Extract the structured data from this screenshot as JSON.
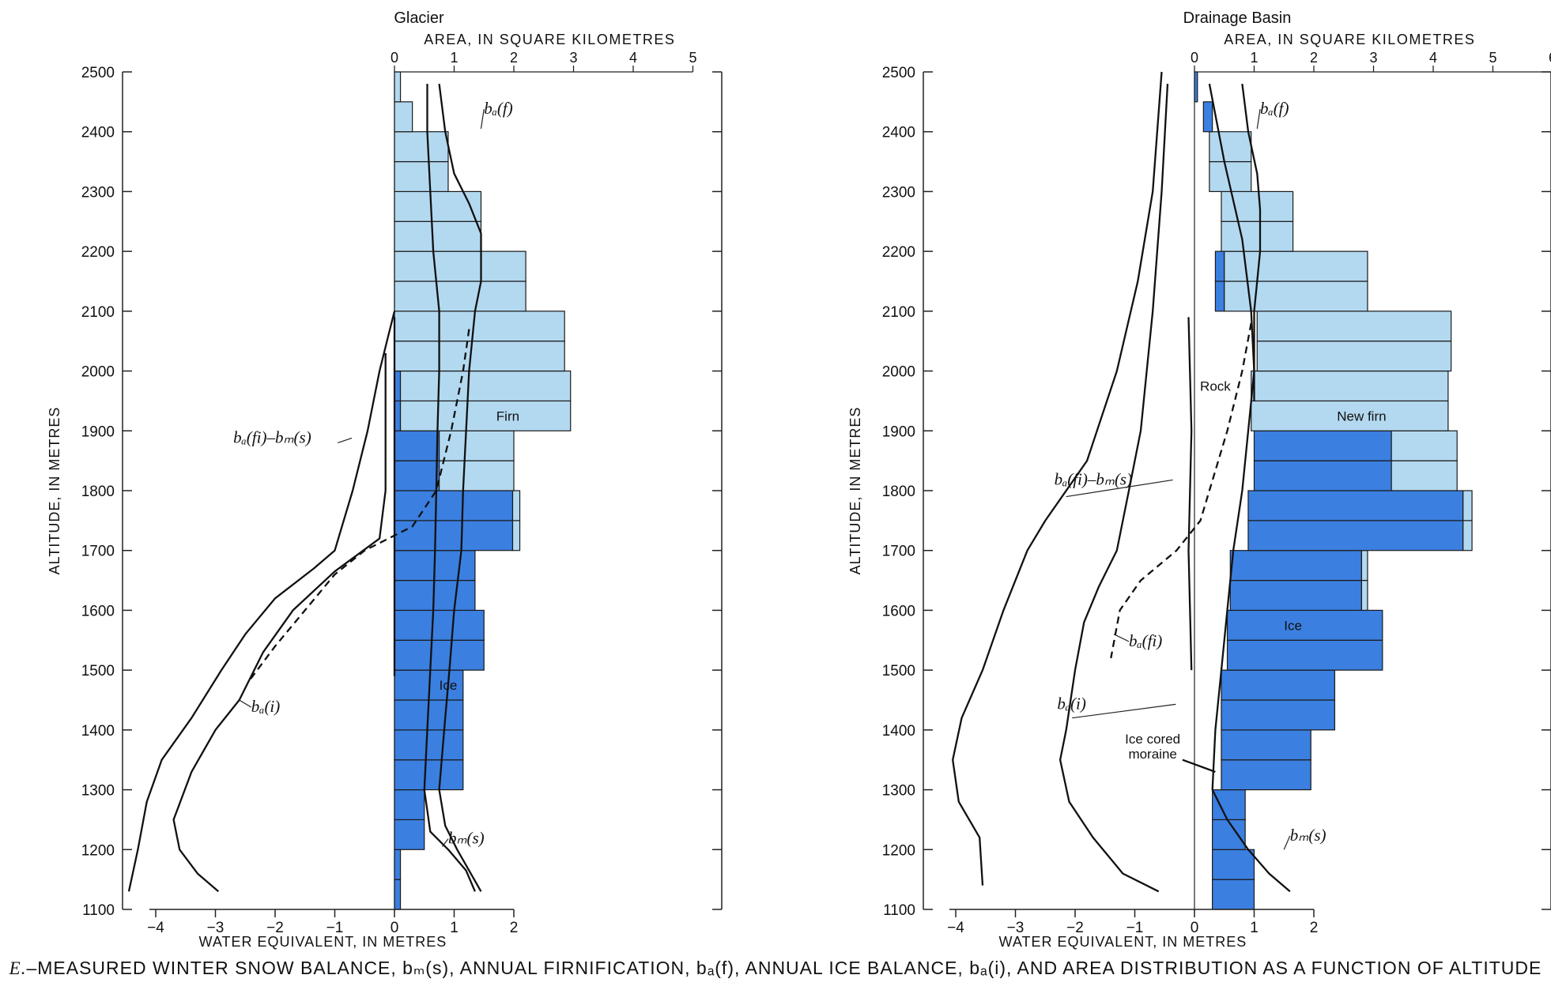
{
  "caption": {
    "letter": "E.",
    "text": "–MEASURED WINTER SNOW BALANCE, bₘ(s), ANNUAL FIRNIFICATION, bₐ(f), ANNUAL ICE BALANCE, bₐ(i), AND AREA DISTRIBUTION AS A FUNCTION OF ALTITUDE"
  },
  "colors": {
    "firn": "#b3d9f0",
    "ice": "#3b7fe0",
    "line": "#111111"
  },
  "chart_data": [
    {
      "type": "bar",
      "title": "Glacier",
      "top_axis_label": "AREA, IN SQUARE KILOMETRES",
      "area_ticks": [
        "0",
        "1",
        "2",
        "3",
        "4",
        "5"
      ],
      "area_lim": [
        0,
        5
      ],
      "ylabel": "ALTITUDE, IN METRES",
      "ylim": [
        1100,
        2500
      ],
      "y_ticks": [
        "1100",
        "1200",
        "1300",
        "1400",
        "1500",
        "1600",
        "1700",
        "1800",
        "1900",
        "2000",
        "2100",
        "2200",
        "2300",
        "2400",
        "2500"
      ],
      "xlabel": "WATER EQUIVALENT, IN METRES",
      "x_ticks": [
        "-4",
        "-3",
        "-2",
        "-1",
        "0",
        "1",
        "2"
      ],
      "xlim": [
        -4.45,
        2
      ],
      "region_labels": [
        {
          "text": "Firn",
          "area": 1.9,
          "alt": 1925,
          "kind": "firn"
        },
        {
          "text": "Ice",
          "area": 0.9,
          "alt": 1475,
          "kind": "ice"
        }
      ],
      "area_bands": {
        "altitudes": [
          1100,
          1150,
          1200,
          1250,
          1300,
          1350,
          1400,
          1450,
          1500,
          1550,
          1600,
          1650,
          1700,
          1750,
          1800,
          1850,
          1900,
          1950,
          2000,
          2050,
          2100,
          2150,
          2200,
          2250,
          2300,
          2350,
          2400,
          2450
        ],
        "ice": [
          0.1,
          0.1,
          0.5,
          0.5,
          1.15,
          1.15,
          1.15,
          1.15,
          1.5,
          1.5,
          1.35,
          1.35,
          1.98,
          1.98,
          0.75,
          0.75,
          0.1,
          0.1,
          0,
          0,
          0,
          0,
          0,
          0,
          0,
          0,
          0,
          0
        ],
        "firn": [
          0,
          0,
          0,
          0,
          0,
          0,
          0,
          0,
          0,
          0,
          0,
          0,
          0.12,
          0.12,
          1.25,
          1.25,
          2.85,
          2.85,
          2.85,
          2.85,
          2.2,
          2.2,
          1.45,
          1.45,
          0.9,
          0.9,
          0.3,
          0.1
        ]
      },
      "series": [
        {
          "name": "bₐ(f)",
          "label_at": {
            "x": 1.5,
            "alt": 2430
          },
          "label_anchor": {
            "x": 1.45,
            "alt": 2405
          },
          "points": [
            [
              0.75,
              2480
            ],
            [
              0.85,
              2400
            ],
            [
              1.0,
              2330
            ],
            [
              1.25,
              2280
            ],
            [
              1.45,
              2230
            ],
            [
              1.45,
              2150
            ],
            [
              1.35,
              2100
            ],
            [
              1.25,
              2000
            ],
            [
              1.2,
              1900
            ],
            [
              1.15,
              1800
            ],
            [
              1.12,
              1700
            ],
            [
              1.0,
              1600
            ],
            [
              0.92,
              1500
            ],
            [
              0.85,
              1420
            ],
            [
              0.75,
              1300
            ],
            [
              0.85,
              1240
            ],
            [
              1.05,
              1200
            ],
            [
              1.25,
              1165
            ],
            [
              1.45,
              1130
            ]
          ]
        },
        {
          "name": "bₘ(s)",
          "label_at": {
            "x": 0.9,
            "alt": 1210
          },
          "label_anchor": {
            "x": 0.8,
            "alt": 1205
          },
          "points": [
            [
              0.55,
              2480
            ],
            [
              0.55,
              2400
            ],
            [
              0.6,
              2300
            ],
            [
              0.65,
              2200
            ],
            [
              0.75,
              2100
            ],
            [
              0.75,
              2000
            ],
            [
              0.72,
              1900
            ],
            [
              0.7,
              1800
            ],
            [
              0.68,
              1700
            ],
            [
              0.65,
              1600
            ],
            [
              0.6,
              1500
            ],
            [
              0.55,
              1400
            ],
            [
              0.5,
              1300
            ],
            [
              0.6,
              1230
            ],
            [
              0.9,
              1200
            ],
            [
              1.2,
              1165
            ],
            [
              1.35,
              1130
            ]
          ]
        },
        {
          "name": "bₐ(i)",
          "label_at": {
            "x": -2.4,
            "alt": 1430
          },
          "label_anchor": {
            "x": -2.6,
            "alt": 1450
          },
          "points": [
            [
              -0.15,
              2030
            ],
            [
              -0.15,
              1900
            ],
            [
              -0.15,
              1800
            ],
            [
              -0.25,
              1720
            ],
            [
              -1.0,
              1665
            ],
            [
              -1.7,
              1600
            ],
            [
              -2.2,
              1530
            ],
            [
              -2.6,
              1450
            ],
            [
              -3.0,
              1400
            ],
            [
              -3.4,
              1330
            ],
            [
              -3.7,
              1250
            ],
            [
              -3.6,
              1200
            ],
            [
              -3.3,
              1160
            ],
            [
              -2.95,
              1130
            ]
          ]
        },
        {
          "name": "bₐ(fi)–bₘ(s)",
          "label_at": {
            "x": -2.7,
            "alt": 1880
          },
          "label_anchor": {
            "x": -0.95,
            "alt": 1880
          },
          "points": [
            [
              0.0,
              2100
            ],
            [
              -0.1,
              2060
            ],
            [
              -0.25,
              2000
            ],
            [
              -0.45,
              1900
            ],
            [
              -0.7,
              1800
            ],
            [
              -1.0,
              1700
            ],
            [
              -1.35,
              1670
            ],
            [
              -2.0,
              1620
            ],
            [
              -2.5,
              1560
            ],
            [
              -2.9,
              1500
            ],
            [
              -3.4,
              1420
            ],
            [
              -3.9,
              1350
            ],
            [
              -4.15,
              1280
            ],
            [
              -4.3,
              1200
            ],
            [
              -4.45,
              1130
            ]
          ]
        },
        {
          "name": "bₐ(fi)",
          "dashed": true,
          "points": [
            [
              1.25,
              2070
            ],
            [
              1.15,
              2000
            ],
            [
              0.95,
              1900
            ],
            [
              0.7,
              1800
            ],
            [
              0.3,
              1740
            ],
            [
              -0.1,
              1720
            ],
            [
              -0.5,
              1700
            ],
            [
              -1.0,
              1660
            ],
            [
              -1.5,
              1600
            ],
            [
              -2.0,
              1540
            ],
            [
              -2.45,
              1480
            ]
          ]
        },
        {
          "name": "bₐ(fi) (0 line)",
          "points": [
            [
              0.0,
              2090
            ],
            [
              0.0,
              1490
            ]
          ]
        }
      ]
    },
    {
      "type": "bar",
      "title": "Drainage Basin",
      "top_axis_label": "AREA, IN SQUARE KILOMETRES",
      "area_ticks": [
        "0",
        "1",
        "2",
        "3",
        "4",
        "5",
        "6"
      ],
      "area_lim": [
        0,
        6
      ],
      "ylabel": "ALTITUDE, IN METRES",
      "ylim": [
        1100,
        2500
      ],
      "y_ticks": [
        "1100",
        "1200",
        "1300",
        "1400",
        "1500",
        "1600",
        "1700",
        "1800",
        "1900",
        "2000",
        "2100",
        "2200",
        "2300",
        "2400",
        "2500"
      ],
      "xlabel": "WATER EQUIVALENT, IN METRES",
      "x_ticks": [
        "-4",
        "-3",
        "-2",
        "-1",
        "0",
        "1",
        "2"
      ],
      "xlim": [
        -4.2,
        2
      ],
      "region_labels": [
        {
          "text": "New firn",
          "area": 2.8,
          "alt": 1925,
          "kind": "firn"
        },
        {
          "text": "Ice",
          "area": 1.65,
          "alt": 1575,
          "kind": "ice"
        },
        {
          "text": "Rock",
          "area": 0.35,
          "alt": 1975,
          "kind": "rock"
        },
        {
          "text": "Ice cored",
          "area": -0.7,
          "alt": 1385,
          "kind": "rock"
        },
        {
          "text": "moraine",
          "area": -0.7,
          "alt": 1360,
          "kind": "rock"
        }
      ],
      "area_bands": {
        "rock": [
          0.3,
          0.3,
          0.3,
          0.3,
          0.45,
          0.45,
          0.45,
          0.45,
          0.55,
          0.55,
          0.6,
          0.6,
          0.9,
          0.9,
          1.0,
          1.0,
          0.95,
          0.95,
          1.05,
          1.05,
          0.35,
          0.35,
          0.45,
          0.45,
          0.25,
          0.25,
          0.15,
          0.0
        ],
        "ice": [
          0.7,
          0.7,
          0.55,
          0.55,
          1.5,
          1.5,
          1.9,
          1.9,
          2.6,
          2.6,
          2.2,
          2.2,
          3.6,
          3.6,
          2.3,
          2.3,
          0.0,
          0.0,
          0.0,
          0.0,
          0.15,
          0.15,
          0.0,
          0.0,
          0.0,
          0.0,
          0.15,
          0.05
        ],
        "firn": [
          0,
          0,
          0,
          0,
          0,
          0,
          0,
          0,
          0,
          0,
          0.1,
          0.1,
          0.15,
          0.15,
          1.1,
          1.1,
          3.3,
          3.3,
          3.25,
          3.25,
          2.4,
          2.4,
          1.2,
          1.2,
          0.7,
          0.7,
          0.0,
          0.0
        ]
      },
      "series": [
        {
          "name": "bₐ(f)",
          "label_at": {
            "x": 1.1,
            "alt": 2430
          },
          "label_anchor": {
            "x": 1.05,
            "alt": 2405
          },
          "points": [
            [
              0.8,
              2480
            ],
            [
              0.9,
              2400
            ],
            [
              1.05,
              2330
            ],
            [
              1.1,
              2270
            ],
            [
              1.1,
              2200
            ],
            [
              1.05,
              2150
            ],
            [
              1.0,
              2100
            ],
            [
              1.0,
              2000
            ],
            [
              1.0,
              1950
            ]
          ]
        },
        {
          "name": "bₘ(s)",
          "label_at": {
            "x": 1.6,
            "alt": 1215
          },
          "label_anchor": {
            "x": 1.5,
            "alt": 1200
          },
          "points": [
            [
              0.25,
              2480
            ],
            [
              0.5,
              2350
            ],
            [
              0.8,
              2220
            ],
            [
              0.95,
              2100
            ],
            [
              1.0,
              2000
            ],
            [
              0.9,
              1900
            ],
            [
              0.8,
              1800
            ],
            [
              0.65,
              1700
            ],
            [
              0.55,
              1600
            ],
            [
              0.45,
              1500
            ],
            [
              0.35,
              1400
            ],
            [
              0.3,
              1300
            ],
            [
              0.55,
              1250
            ],
            [
              0.9,
              1200
            ],
            [
              1.25,
              1160
            ],
            [
              1.6,
              1130
            ]
          ]
        },
        {
          "name": "bₐ(i)",
          "label_at": {
            "x": -2.3,
            "alt": 1435
          },
          "label_anchor": {
            "x": -2.05,
            "alt": 1420
          },
          "points": [
            [
              -0.45,
              2480
            ],
            [
              -0.55,
              2300
            ],
            [
              -0.7,
              2100
            ],
            [
              -0.9,
              1900
            ],
            [
              -1.1,
              1800
            ],
            [
              -1.3,
              1700
            ],
            [
              -1.6,
              1640
            ],
            [
              -1.85,
              1580
            ],
            [
              -2.0,
              1500
            ],
            [
              -2.15,
              1400
            ],
            [
              -2.25,
              1350
            ],
            [
              -2.1,
              1280
            ],
            [
              -1.7,
              1220
            ],
            [
              -1.2,
              1160
            ],
            [
              -0.6,
              1130
            ]
          ]
        },
        {
          "name": "bₐ(fi)–bₘ(s)",
          "label_at": {
            "x": -2.35,
            "alt": 1810
          },
          "label_anchor": {
            "x": -2.15,
            "alt": 1790
          },
          "points": [
            [
              -0.55,
              2500
            ],
            [
              -0.7,
              2300
            ],
            [
              -0.95,
              2150
            ],
            [
              -1.3,
              2000
            ],
            [
              -1.8,
              1850
            ],
            [
              -2.5,
              1750
            ],
            [
              -2.8,
              1700
            ],
            [
              -3.2,
              1600
            ],
            [
              -3.55,
              1500
            ],
            [
              -3.9,
              1420
            ],
            [
              -4.05,
              1350
            ],
            [
              -3.95,
              1280
            ],
            [
              -3.6,
              1220
            ],
            [
              -3.55,
              1140
            ]
          ]
        },
        {
          "name": "bₐ(fi)",
          "dashed": true,
          "label_at": {
            "x": -1.1,
            "alt": 1540
          },
          "label_anchor": {
            "x": -1.35,
            "alt": 1560
          },
          "points": [
            [
              0.95,
              2080
            ],
            [
              0.8,
              2000
            ],
            [
              0.55,
              1900
            ],
            [
              0.1,
              1750
            ],
            [
              -0.3,
              1700
            ],
            [
              -0.9,
              1650
            ],
            [
              -1.25,
              1600
            ],
            [
              -1.4,
              1520
            ]
          ]
        },
        {
          "name": "bₐ(fi) (0 line)",
          "points": [
            [
              -0.1,
              2090
            ],
            [
              -0.05,
              1900
            ],
            [
              -0.1,
              1700
            ],
            [
              -0.05,
              1500
            ]
          ]
        },
        {
          "name": "moraine pointer",
          "points": [
            [
              -0.2,
              1350
            ],
            [
              0.35,
              1330
            ]
          ]
        }
      ]
    }
  ]
}
